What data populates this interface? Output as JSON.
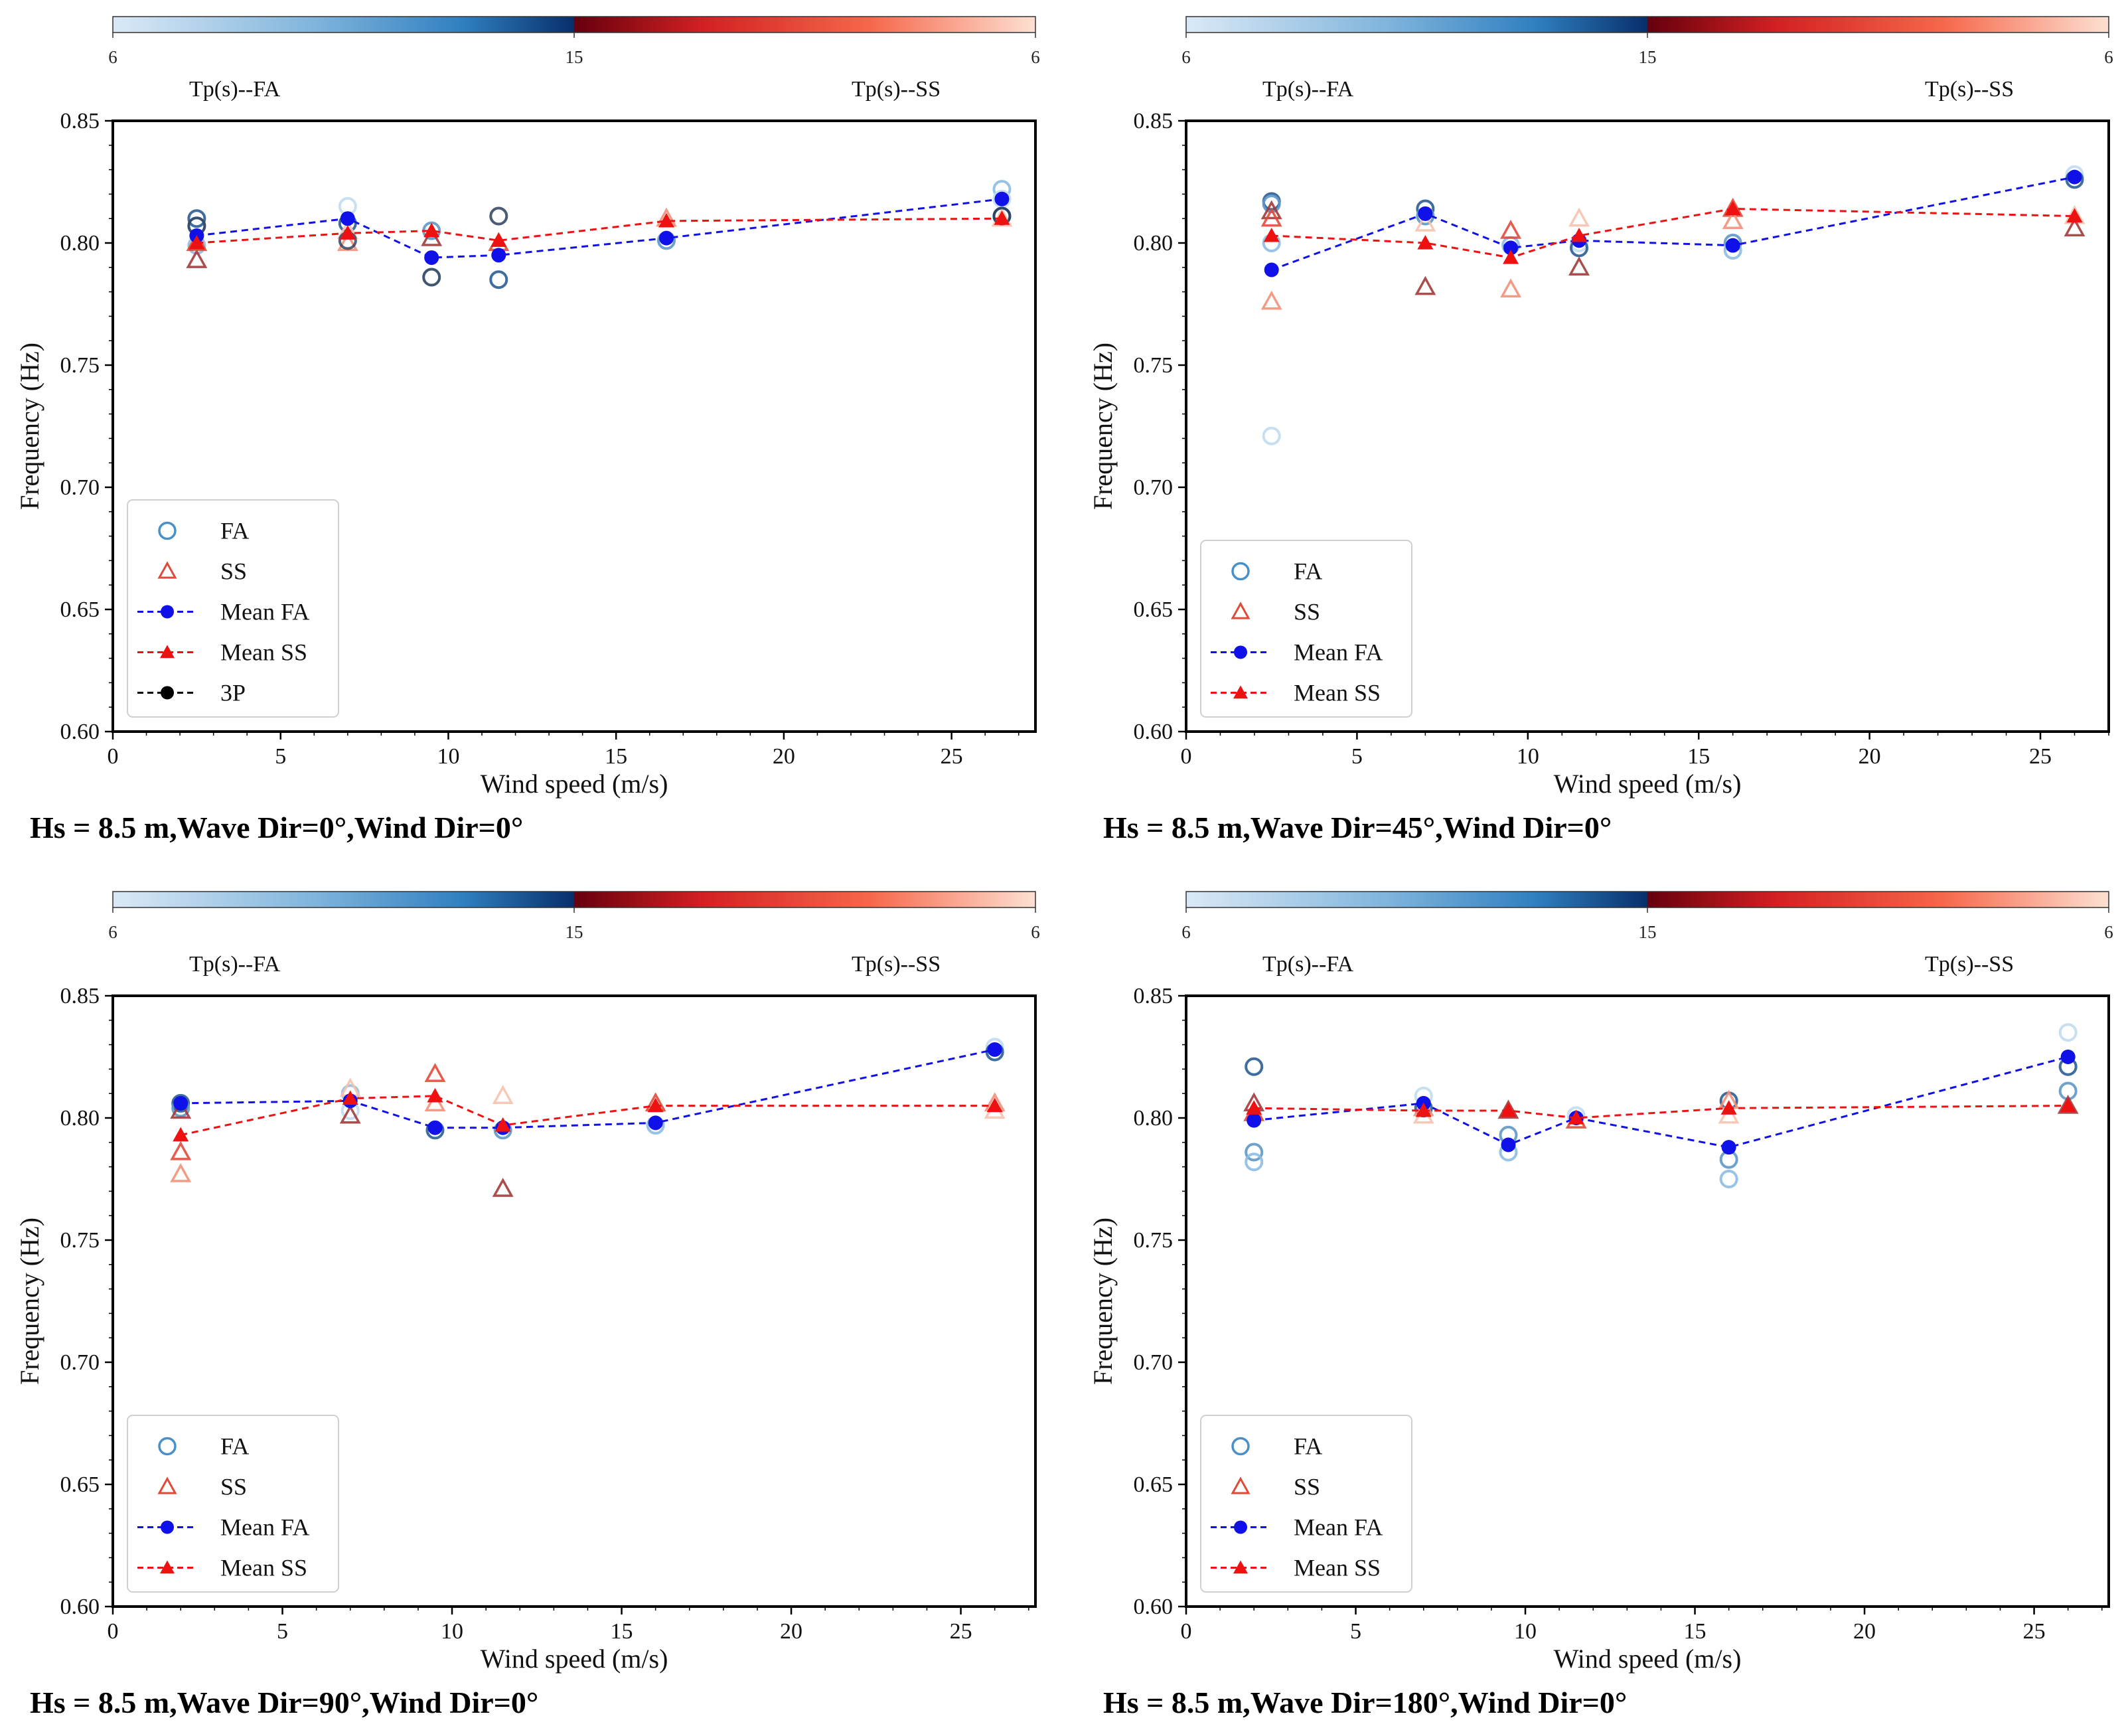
{
  "chart_data": [
    {
      "type": "scatter",
      "caption": "Hs = 8.5 m,Wave Dir=0°,Wind Dir=0°",
      "xlabel": "Wind speed (m/s)",
      "ylabel": "Frequency (Hz)",
      "xlim": [
        0,
        27.5
      ],
      "ylim": [
        0.6,
        0.85
      ],
      "xticks": [
        0,
        5,
        10,
        15,
        20,
        25
      ],
      "yticks": [
        0.6,
        0.65,
        0.7,
        0.75,
        0.8,
        0.85
      ],
      "grid": false,
      "colorbar": {
        "ticks": [
          "6",
          "15",
          "6"
        ],
        "left_label": "Tp(s)--FA",
        "right_label": "Tp(s)--SS",
        "range": [
          6,
          15
        ]
      },
      "legend": [
        "FA",
        "SS",
        "Mean FA",
        "Mean SS",
        "3P"
      ],
      "legend_position": "lower-left",
      "x": [
        2.5,
        7,
        9.5,
        11.5,
        16.5,
        26.5
      ],
      "mean_fa": [
        0.803,
        0.81,
        0.794,
        0.795,
        0.802,
        0.818
      ],
      "mean_ss": [
        0.8,
        0.804,
        0.805,
        0.801,
        0.809,
        0.81
      ],
      "fa_points": [
        [
          2.5,
          0.81
        ],
        [
          2.5,
          0.807
        ],
        [
          2.5,
          0.799
        ],
        [
          7,
          0.815
        ],
        [
          7,
          0.808
        ],
        [
          9.5,
          0.805
        ],
        [
          9.5,
          0.786
        ],
        [
          11.5,
          0.811
        ],
        [
          11.5,
          0.785
        ],
        [
          16.5,
          0.801
        ],
        [
          26.5,
          0.822
        ],
        [
          26.5,
          0.818
        ],
        [
          26.5,
          0.811
        ]
      ],
      "ss_points": [
        [
          2.5,
          0.793
        ],
        [
          2.5,
          0.8
        ],
        [
          7,
          0.8
        ],
        [
          7,
          0.805
        ],
        [
          9.5,
          0.802
        ],
        [
          11.5,
          0.8
        ],
        [
          16.5,
          0.81
        ],
        [
          26.5,
          0.81
        ]
      ],
      "threep_points": [
        [
          2.5,
          0.807
        ],
        [
          7,
          0.801
        ],
        [
          9.5,
          0.786
        ],
        [
          11.5,
          0.811
        ],
        [
          26.5,
          0.811
        ]
      ],
      "colors": {
        "fa": "#1010e8",
        "ss": "#ee1111",
        "threep": "#000000"
      }
    },
    {
      "type": "scatter",
      "caption": "Hs = 8.5 m,Wave Dir=45°,Wind Dir=0°",
      "xlabel": "Wind speed (m/s)",
      "ylabel": "Frequency (Hz)",
      "xlim": [
        0,
        27.0
      ],
      "ylim": [
        0.6,
        0.85
      ],
      "xticks": [
        0,
        5,
        10,
        15,
        20,
        25
      ],
      "yticks": [
        0.6,
        0.65,
        0.7,
        0.75,
        0.8,
        0.85
      ],
      "grid": false,
      "colorbar": {
        "ticks": [
          "6",
          "15",
          "6"
        ],
        "left_label": "Tp(s)--FA",
        "right_label": "Tp(s)--SS",
        "range": [
          6,
          15
        ]
      },
      "legend": [
        "FA",
        "SS",
        "Mean FA",
        "Mean SS"
      ],
      "legend_position": "lower-left",
      "x": [
        2.5,
        7,
        9.5,
        11.5,
        16,
        26
      ],
      "mean_fa": [
        0.789,
        0.812,
        0.798,
        0.801,
        0.799,
        0.827
      ],
      "mean_ss": [
        0.803,
        0.8,
        0.794,
        0.803,
        0.814,
        0.811
      ],
      "fa_points": [
        [
          2.5,
          0.817
        ],
        [
          2.5,
          0.816
        ],
        [
          2.5,
          0.8
        ],
        [
          2.5,
          0.721
        ],
        [
          7,
          0.814
        ],
        [
          7,
          0.811
        ],
        [
          9.5,
          0.799
        ],
        [
          11.5,
          0.8
        ],
        [
          11.5,
          0.798
        ],
        [
          16,
          0.8
        ],
        [
          16,
          0.797
        ],
        [
          26,
          0.828
        ],
        [
          26,
          0.826
        ]
      ],
      "ss_points": [
        [
          2.5,
          0.813
        ],
        [
          2.5,
          0.81
        ],
        [
          2.5,
          0.776
        ],
        [
          7,
          0.808
        ],
        [
          7,
          0.782
        ],
        [
          9.5,
          0.805
        ],
        [
          9.5,
          0.781
        ],
        [
          11.5,
          0.81
        ],
        [
          11.5,
          0.79
        ],
        [
          16,
          0.814
        ],
        [
          16,
          0.809
        ],
        [
          26,
          0.811
        ],
        [
          26,
          0.806
        ]
      ],
      "colors": {
        "fa": "#1010e8",
        "ss": "#ee1111"
      }
    },
    {
      "type": "scatter",
      "caption": "Hs = 8.5 m,Wave Dir=90°,Wind Dir=0°",
      "xlabel": "Wind speed (m/s)",
      "ylabel": "Frequency (Hz)",
      "xlim": [
        0,
        27.2
      ],
      "ylim": [
        0.6,
        0.85
      ],
      "xticks": [
        0,
        5,
        10,
        15,
        20,
        25
      ],
      "yticks": [
        0.6,
        0.65,
        0.7,
        0.75,
        0.8,
        0.85
      ],
      "grid": false,
      "colorbar": {
        "ticks": [
          "6",
          "15",
          "6"
        ],
        "left_label": "Tp(s)--FA",
        "right_label": "Tp(s)--SS",
        "range": [
          6,
          15
        ]
      },
      "legend": [
        "FA",
        "SS",
        "Mean FA",
        "Mean SS"
      ],
      "legend_position": "lower-left",
      "x": [
        2,
        7,
        9.5,
        11.5,
        16,
        26
      ],
      "mean_fa": [
        0.806,
        0.807,
        0.796,
        0.796,
        0.798,
        0.828
      ],
      "mean_ss": [
        0.793,
        0.808,
        0.809,
        0.797,
        0.805,
        0.805
      ],
      "fa_points": [
        [
          2,
          0.806
        ],
        [
          2,
          0.804
        ],
        [
          7,
          0.81
        ],
        [
          7,
          0.803
        ],
        [
          9.5,
          0.795
        ],
        [
          11.5,
          0.795
        ],
        [
          16,
          0.797
        ],
        [
          26,
          0.829
        ],
        [
          26,
          0.827
        ]
      ],
      "ss_points": [
        [
          2,
          0.803
        ],
        [
          2,
          0.786
        ],
        [
          2,
          0.777
        ],
        [
          7,
          0.812
        ],
        [
          7,
          0.801
        ],
        [
          9.5,
          0.818
        ],
        [
          9.5,
          0.806
        ],
        [
          11.5,
          0.809
        ],
        [
          11.5,
          0.771
        ],
        [
          16,
          0.806
        ],
        [
          26,
          0.806
        ],
        [
          26,
          0.803
        ]
      ],
      "colors": {
        "fa": "#1010e8",
        "ss": "#ee1111"
      }
    },
    {
      "type": "scatter",
      "caption": "Hs = 8.5 m,Wave Dir=180°,Wind Dir=0°",
      "xlabel": "Wind speed (m/s)",
      "ylabel": "Frequency (Hz)",
      "xlim": [
        0,
        27.2
      ],
      "ylim": [
        0.6,
        0.85
      ],
      "xticks": [
        0,
        5,
        10,
        15,
        20,
        25
      ],
      "yticks": [
        0.6,
        0.65,
        0.7,
        0.75,
        0.8,
        0.85
      ],
      "grid": false,
      "colorbar": {
        "ticks": [
          "6",
          "15",
          "6"
        ],
        "left_label": "Tp(s)--FA",
        "right_label": "Tp(s)--SS",
        "range": [
          6,
          15
        ]
      },
      "legend": [
        "FA",
        "SS",
        "Mean FA",
        "Mean SS"
      ],
      "legend_position": "lower-left",
      "x": [
        2,
        7,
        9.5,
        11.5,
        16,
        26
      ],
      "mean_fa": [
        0.799,
        0.806,
        0.789,
        0.8,
        0.788,
        0.825
      ],
      "mean_ss": [
        0.804,
        0.803,
        0.803,
        0.8,
        0.804,
        0.805
      ],
      "fa_points": [
        [
          2,
          0.821
        ],
        [
          2,
          0.786
        ],
        [
          2,
          0.782
        ],
        [
          7,
          0.809
        ],
        [
          7,
          0.804
        ],
        [
          9.5,
          0.793
        ],
        [
          9.5,
          0.786
        ],
        [
          11.5,
          0.801
        ],
        [
          16,
          0.807
        ],
        [
          16,
          0.783
        ],
        [
          16,
          0.775
        ],
        [
          26,
          0.835
        ],
        [
          26,
          0.821
        ],
        [
          26,
          0.811
        ]
      ],
      "ss_points": [
        [
          2,
          0.806
        ],
        [
          2,
          0.802
        ],
        [
          7,
          0.804
        ],
        [
          7,
          0.801
        ],
        [
          9.5,
          0.803
        ],
        [
          11.5,
          0.799
        ],
        [
          16,
          0.807
        ],
        [
          16,
          0.801
        ],
        [
          26,
          0.805
        ]
      ],
      "colors": {
        "fa": "#1010e8",
        "ss": "#ee1111"
      }
    }
  ]
}
